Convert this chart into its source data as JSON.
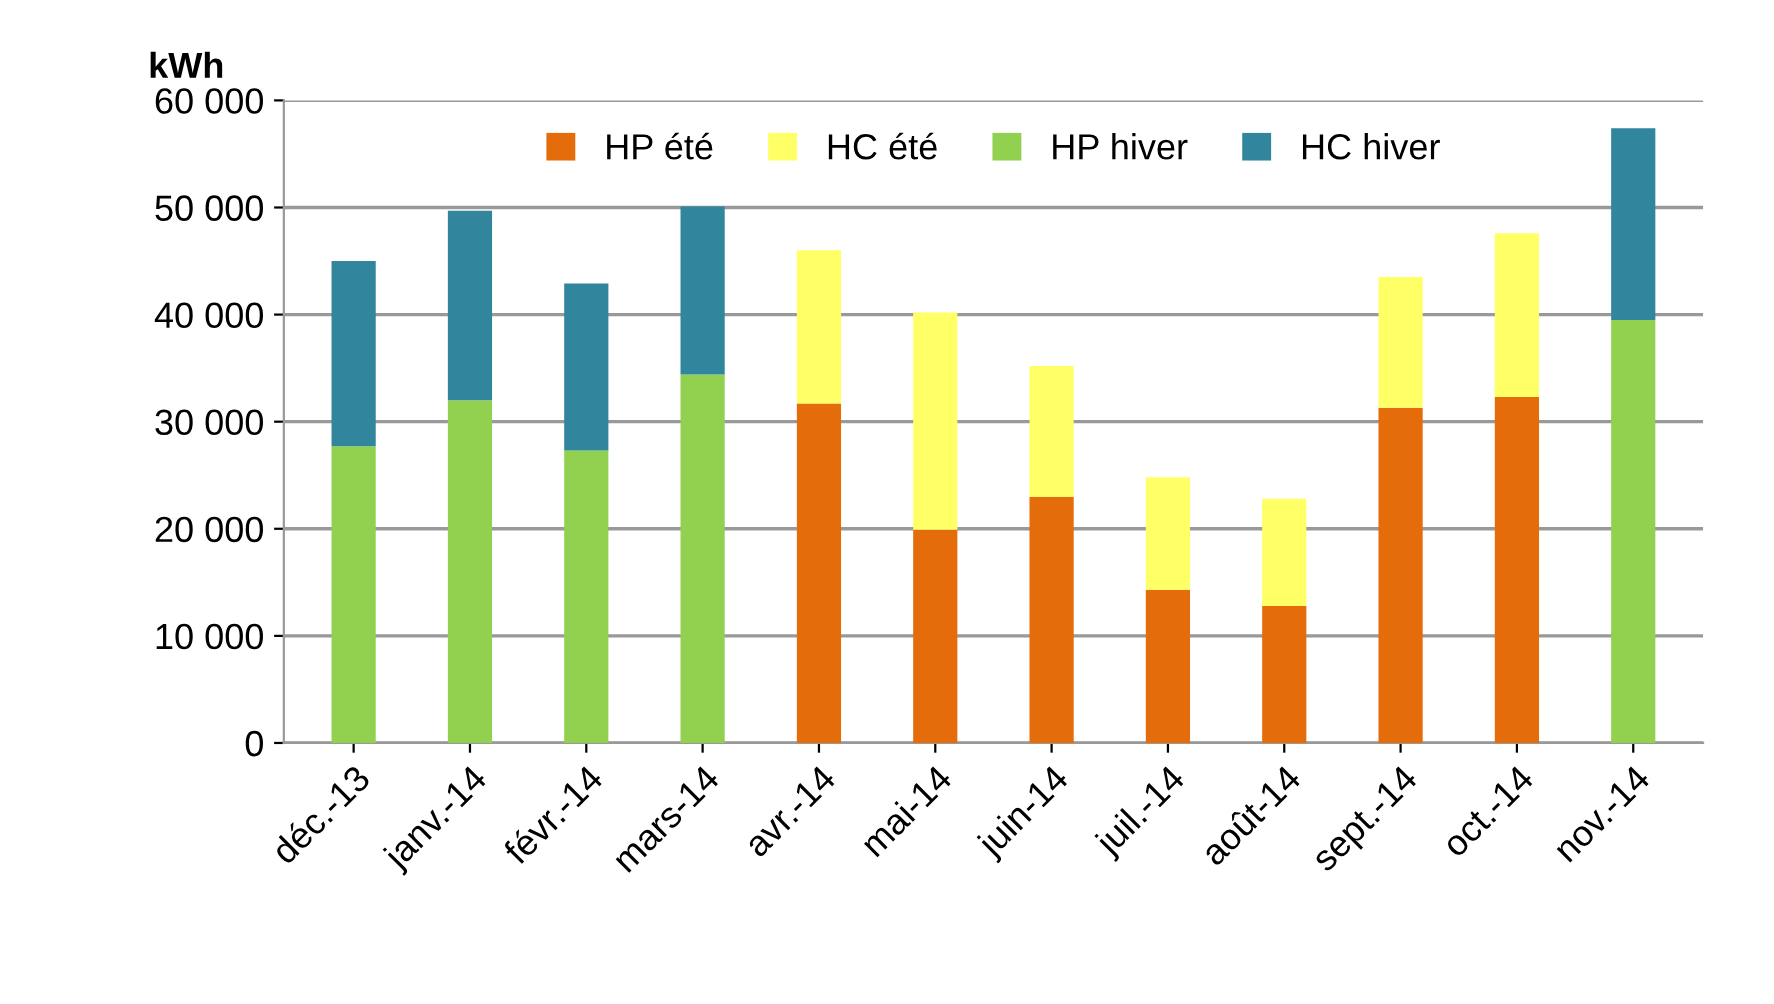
{
  "chart_data": {
    "type": "bar",
    "stacked": true,
    "ylabel": "kWh",
    "categories": [
      "déc.-13",
      "janv.-14",
      "févr.-14",
      "mars-14",
      "avr.-14",
      "mai-14",
      "juin-14",
      "juil.-14",
      "août-14",
      "sept.-14",
      "oct.-14",
      "nov.-14"
    ],
    "series": [
      {
        "name": "HP été",
        "color": "#e46c0a",
        "values": [
          null,
          null,
          null,
          null,
          31700,
          19900,
          23000,
          14300,
          12800,
          31300,
          32300,
          null
        ]
      },
      {
        "name": "HC été",
        "color": "#ffff66",
        "values": [
          null,
          null,
          null,
          null,
          14300,
          20300,
          12200,
          10500,
          10000,
          12200,
          15300,
          null
        ]
      },
      {
        "name": "HP hiver",
        "color": "#92d050",
        "values": [
          27700,
          32000,
          27300,
          34400,
          null,
          null,
          null,
          null,
          null,
          null,
          null,
          39500
        ]
      },
      {
        "name": "HC hiver",
        "color": "#31859c",
        "values": [
          17300,
          17700,
          15600,
          15700,
          null,
          null,
          null,
          null,
          null,
          null,
          null,
          17900
        ]
      }
    ],
    "ylim": [
      0,
      60000
    ],
    "yticks": [
      0,
      {
        "value": 10000,
        "label": "10 000"
      },
      {
        "value": 20000,
        "label": "20 000"
      },
      {
        "value": 30000,
        "label": "30 000"
      },
      {
        "value": 40000,
        "label": "40 000"
      },
      {
        "value": 50000,
        "label": "50 000"
      },
      {
        "value": 60000,
        "label": "60 000"
      }
    ],
    "grid": "y",
    "legend": "top"
  }
}
